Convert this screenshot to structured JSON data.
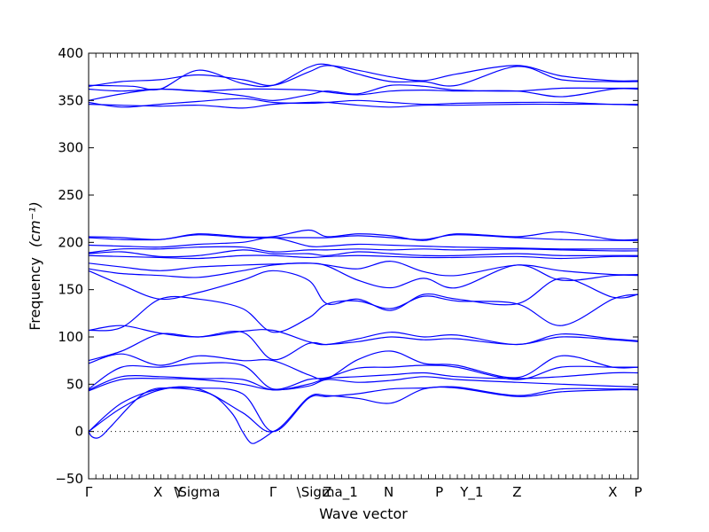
{
  "chart_data": {
    "type": "line",
    "title": "",
    "xlabel": "Wave vector",
    "ylabel": "Frequency",
    "ylabel_unit": "(cm⁻¹)",
    "ylim": [
      -50,
      400
    ],
    "yticks": [
      -50,
      0,
      50,
      100,
      150,
      200,
      250,
      300,
      350,
      400
    ],
    "xlim": [
      0,
      1
    ],
    "high_symmetry_points": [
      {
        "label": "Γ",
        "x": 0.0
      },
      {
        "label": "X",
        "x": 0.1263
      },
      {
        "label": "Y",
        "x": 0.1645
      },
      {
        "label": "\\Sigma",
        "x": 0.1974
      },
      {
        "label": "Γ",
        "x": 0.3355
      },
      {
        "label": "Z",
        "x": 0.4342
      },
      {
        "label": "\\Sigma_1",
        "x": 0.4342
      },
      {
        "label": "N",
        "x": 0.5461
      },
      {
        "label": "P",
        "x": 0.6382
      },
      {
        "label": "Y_1",
        "x": 0.6974
      },
      {
        "label": "Z",
        "x": 0.7796
      },
      {
        "label": "X",
        "x": 0.9539
      },
      {
        "label": "P",
        "x": 1.0
      }
    ],
    "zero_line": true,
    "series": [
      {
        "x": [
          0,
          0.06,
          0.13,
          0.2,
          0.28,
          0.3355,
          0.4,
          0.4342,
          0.49,
          0.55,
          0.61,
          0.67,
          0.7796,
          0.86,
          0.9539,
          1.0
        ],
        "values": [
          365,
          370,
          372,
          377,
          372,
          366,
          380,
          387,
          382,
          375,
          371,
          378,
          387,
          376,
          371,
          371
        ]
      },
      {
        "x": [
          0,
          0.08,
          0.13,
          0.2,
          0.28,
          0.3355,
          0.4,
          0.4342,
          0.49,
          0.55,
          0.61,
          0.67,
          0.7796,
          0.86,
          0.9539,
          1.0
        ],
        "values": [
          366,
          365,
          362,
          382,
          368,
          366,
          385,
          388,
          378,
          370,
          370,
          366,
          386,
          372,
          370,
          370
        ]
      },
      {
        "x": [
          0,
          0.06,
          0.13,
          0.2,
          0.28,
          0.3355,
          0.4,
          0.4342,
          0.49,
          0.55,
          0.61,
          0.67,
          0.7796,
          0.86,
          0.9539,
          1.0
        ],
        "values": [
          362,
          360,
          362,
          360,
          355,
          350,
          356,
          360,
          357,
          366,
          365,
          361,
          360,
          363,
          363,
          363
        ]
      },
      {
        "x": [
          0,
          0.06,
          0.13,
          0.2,
          0.28,
          0.3355,
          0.4,
          0.4342,
          0.49,
          0.55,
          0.61,
          0.67,
          0.7796,
          0.86,
          0.9539,
          1.0
        ],
        "values": [
          350,
          357,
          362,
          360,
          362,
          362,
          361,
          359,
          356,
          360,
          361,
          360,
          360,
          354,
          362,
          362
        ]
      },
      {
        "x": [
          0,
          0.06,
          0.13,
          0.2,
          0.28,
          0.3355,
          0.4,
          0.4342,
          0.49,
          0.55,
          0.61,
          0.67,
          0.7796,
          0.86,
          0.9539,
          1.0
        ],
        "values": [
          348,
          343,
          346,
          349,
          352,
          348,
          347,
          348,
          350,
          348,
          346,
          347,
          348,
          348,
          346,
          346
        ]
      },
      {
        "x": [
          0,
          0.06,
          0.13,
          0.2,
          0.28,
          0.3355,
          0.4,
          0.4342,
          0.49,
          0.55,
          0.61,
          0.67,
          0.7796,
          0.86,
          0.9539,
          1.0
        ],
        "values": [
          346,
          345,
          344,
          345,
          342,
          346,
          348,
          348,
          345,
          343,
          345,
          345,
          346,
          346,
          346,
          345
        ]
      },
      {
        "x": [
          0,
          0.06,
          0.13,
          0.2,
          0.28,
          0.3355,
          0.4,
          0.4342,
          0.49,
          0.55,
          0.61,
          0.67,
          0.7796,
          0.86,
          0.9539,
          1.0
        ],
        "values": [
          206,
          205,
          203,
          209,
          206,
          206,
          213,
          206,
          209,
          207,
          202,
          209,
          206,
          211,
          203,
          203
        ]
      },
      {
        "x": [
          0,
          0.06,
          0.13,
          0.2,
          0.28,
          0.3355,
          0.4,
          0.4342,
          0.49,
          0.55,
          0.61,
          0.67,
          0.7796,
          0.86,
          0.9539,
          1.0
        ],
        "values": [
          205,
          203,
          203,
          208,
          205,
          205,
          205,
          205,
          207,
          205,
          203,
          208,
          205,
          203,
          202,
          202
        ]
      },
      {
        "x": [
          0,
          0.06,
          0.13,
          0.2,
          0.28,
          0.3355,
          0.4,
          0.4342,
          0.49,
          0.55,
          0.61,
          0.67,
          0.7796,
          0.86,
          0.9539,
          1.0
        ],
        "values": [
          197,
          196,
          195,
          198,
          200,
          205,
          196,
          196,
          198,
          197,
          196,
          195,
          194,
          193,
          193,
          193
        ]
      },
      {
        "x": [
          0,
          0.06,
          0.13,
          0.2,
          0.28,
          0.3355,
          0.4,
          0.4342,
          0.49,
          0.55,
          0.61,
          0.67,
          0.7796,
          0.86,
          0.9539,
          1.0
        ],
        "values": [
          189,
          193,
          193,
          195,
          195,
          190,
          192,
          192,
          193,
          192,
          193,
          192,
          193,
          192,
          191,
          191
        ]
      },
      {
        "x": [
          0,
          0.06,
          0.13,
          0.2,
          0.28,
          0.3355,
          0.4,
          0.4342,
          0.49,
          0.55,
          0.61,
          0.67,
          0.7796,
          0.86,
          0.9539,
          1.0
        ],
        "values": [
          188,
          190,
          185,
          186,
          192,
          188,
          188,
          186,
          190,
          188,
          186,
          186,
          188,
          186,
          186,
          186
        ]
      },
      {
        "x": [
          0,
          0.06,
          0.13,
          0.2,
          0.28,
          0.3355,
          0.4,
          0.4342,
          0.49,
          0.55,
          0.61,
          0.67,
          0.7796,
          0.86,
          0.9539,
          1.0
        ],
        "values": [
          186,
          185,
          184,
          183,
          186,
          186,
          184,
          185,
          186,
          185,
          184,
          184,
          185,
          183,
          185,
          185
        ]
      },
      {
        "x": [
          0,
          0.06,
          0.13,
          0.2,
          0.28,
          0.3355,
          0.4,
          0.4342,
          0.49,
          0.55,
          0.61,
          0.67,
          0.7796,
          0.86,
          0.9539,
          1.0
        ],
        "values": [
          178,
          174,
          170,
          174,
          176,
          177,
          178,
          176,
          172,
          180,
          169,
          165,
          176,
          170,
          166,
          166
        ]
      },
      {
        "x": [
          0,
          0.06,
          0.13,
          0.2,
          0.28,
          0.3355,
          0.4,
          0.4342,
          0.49,
          0.55,
          0.61,
          0.67,
          0.7796,
          0.86,
          0.9539,
          1.0
        ],
        "values": [
          172,
          167,
          165,
          163,
          170,
          176,
          178,
          175,
          160,
          152,
          162,
          152,
          176,
          160,
          165,
          165
        ]
      },
      {
        "x": [
          0,
          0.06,
          0.13,
          0.2,
          0.28,
          0.3355,
          0.4,
          0.4342,
          0.49,
          0.55,
          0.61,
          0.67,
          0.7796,
          0.86,
          0.9539,
          1.0
        ],
        "values": [
          170,
          155,
          140,
          147,
          160,
          170,
          160,
          135,
          140,
          128,
          145,
          140,
          135,
          162,
          142,
          145
        ]
      },
      {
        "x": [
          0,
          0.06,
          0.13,
          0.2,
          0.28,
          0.3355,
          0.4,
          0.4342,
          0.49,
          0.55,
          0.61,
          0.67,
          0.7796,
          0.86,
          0.9539,
          1.0
        ],
        "values": [
          107,
          110,
          140,
          140,
          130,
          105,
          120,
          135,
          138,
          130,
          143,
          138,
          135,
          112,
          140,
          145
        ]
      },
      {
        "x": [
          0,
          0.06,
          0.13,
          0.2,
          0.28,
          0.3355,
          0.4,
          0.4342,
          0.49,
          0.55,
          0.61,
          0.67,
          0.7796,
          0.86,
          0.9539,
          1.0
        ],
        "values": [
          107,
          112,
          104,
          100,
          106,
          107,
          95,
          92,
          98,
          105,
          100,
          102,
          92,
          103,
          98,
          96
        ]
      },
      {
        "x": [
          0,
          0.06,
          0.13,
          0.2,
          0.28,
          0.3355,
          0.4,
          0.4342,
          0.49,
          0.55,
          0.61,
          0.67,
          0.7796,
          0.86,
          0.9539,
          1.0
        ],
        "values": [
          75,
          85,
          103,
          100,
          105,
          76,
          93,
          92,
          95,
          100,
          97,
          98,
          92,
          100,
          97,
          95
        ]
      },
      {
        "x": [
          0,
          0.06,
          0.13,
          0.2,
          0.28,
          0.3355,
          0.4,
          0.4342,
          0.49,
          0.55,
          0.61,
          0.67,
          0.7796,
          0.86,
          0.9539,
          1.0
        ],
        "values": [
          72,
          82,
          70,
          80,
          75,
          75,
          60,
          56,
          76,
          85,
          72,
          70,
          57,
          80,
          68,
          68
        ]
      },
      {
        "x": [
          0,
          0.06,
          0.13,
          0.2,
          0.28,
          0.3355,
          0.4,
          0.4342,
          0.49,
          0.55,
          0.61,
          0.67,
          0.7796,
          0.86,
          0.9539,
          1.0
        ],
        "values": [
          45,
          68,
          68,
          72,
          70,
          45,
          55,
          57,
          67,
          68,
          70,
          68,
          55,
          68,
          68,
          68
        ]
      },
      {
        "x": [
          0,
          0.06,
          0.13,
          0.2,
          0.28,
          0.3355,
          0.4,
          0.4342,
          0.49,
          0.55,
          0.61,
          0.67,
          0.7796,
          0.86,
          0.9539,
          1.0
        ],
        "values": [
          44,
          58,
          58,
          56,
          55,
          44,
          50,
          56,
          58,
          60,
          62,
          58,
          56,
          58,
          62,
          62
        ]
      },
      {
        "x": [
          0,
          0.06,
          0.13,
          0.2,
          0.28,
          0.3355,
          0.4,
          0.4342,
          0.49,
          0.55,
          0.61,
          0.67,
          0.7796,
          0.86,
          0.9539,
          1.0
        ],
        "values": [
          43,
          55,
          56,
          55,
          50,
          44,
          48,
          55,
          52,
          54,
          58,
          55,
          52,
          50,
          48,
          47
        ]
      },
      {
        "x": [
          0,
          0.06,
          0.13,
          0.2,
          0.28,
          0.3355,
          0.4,
          0.4342,
          0.49,
          0.55,
          0.61,
          0.67,
          0.7796,
          0.86,
          0.9539,
          1.0
        ],
        "values": [
          0,
          30,
          45,
          46,
          40,
          0,
          35,
          37,
          40,
          45,
          46,
          47,
          38,
          45,
          45,
          45
        ]
      },
      {
        "x": [
          0,
          0.06,
          0.13,
          0.2,
          0.28,
          0.3355,
          0.4,
          0.4342,
          0.49,
          0.55,
          0.61,
          0.67,
          0.7796,
          0.86,
          0.9539,
          1.0
        ],
        "values": [
          0,
          25,
          44,
          45,
          20,
          0,
          36,
          38,
          35,
          30,
          45,
          46,
          37,
          42,
          44,
          44
        ]
      },
      {
        "x": [
          0,
          0.005,
          0.015,
          0.025,
          0.04,
          0.1,
          0.15,
          0.22,
          0.26,
          0.28,
          0.295,
          0.31,
          0.3355
        ],
        "values": [
          0,
          -5,
          -7,
          -4,
          5,
          40,
          46,
          40,
          20,
          0,
          -12,
          -10,
          0
        ]
      }
    ]
  }
}
